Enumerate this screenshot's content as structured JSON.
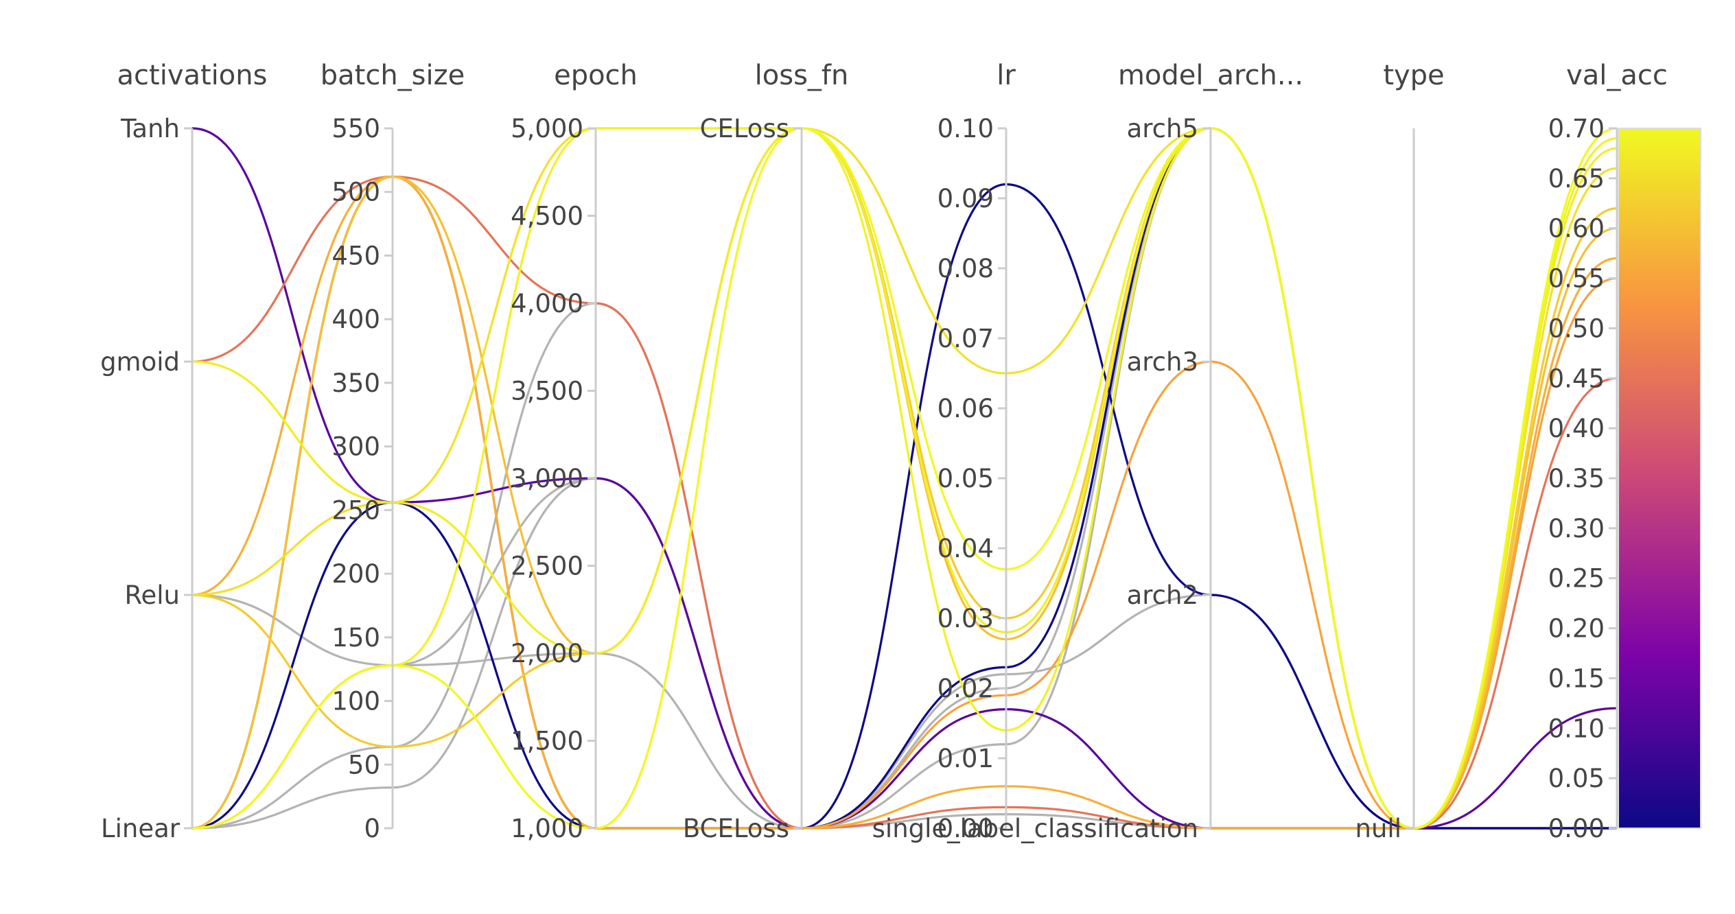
{
  "chart_data": {
    "type": "parallel_coordinates",
    "color_by": "val_acc",
    "dimensions": [
      {
        "key": "activations",
        "label": "activations",
        "kind": "categorical",
        "categories": [
          "Linear",
          "Relu",
          "Sigmoid",
          "Tanh"
        ],
        "tick_labels": [
          "Linear",
          "Relu",
          "gmoid",
          "Tanh"
        ]
      },
      {
        "key": "batch_size",
        "label": "batch_size",
        "kind": "numeric",
        "range": [
          0,
          550
        ],
        "ticks": [
          0,
          50,
          100,
          150,
          200,
          250,
          300,
          350,
          400,
          450,
          500,
          550
        ],
        "tick_labels": [
          "0",
          "50",
          "100",
          "150",
          "200",
          "250",
          "300",
          "350",
          "400",
          "450",
          "500",
          "550"
        ]
      },
      {
        "key": "epoch",
        "label": "epoch",
        "kind": "numeric",
        "range": [
          1000,
          5000
        ],
        "ticks": [
          1000,
          1500,
          2000,
          2500,
          3000,
          3500,
          4000,
          4500,
          5000
        ],
        "tick_labels": [
          "1,000",
          "1,500",
          "2,000",
          "2,500",
          "3,000",
          "3,500",
          "4,000",
          "4,500",
          "5,000"
        ]
      },
      {
        "key": "loss_fn",
        "label": "loss_fn",
        "kind": "categorical",
        "categories": [
          "BCELoss",
          "CELoss"
        ],
        "tick_labels": [
          "BCELoss",
          "CELoss"
        ]
      },
      {
        "key": "lr",
        "label": "lr",
        "kind": "numeric",
        "range": [
          0,
          0.1
        ],
        "ticks": [
          0,
          0.01,
          0.02,
          0.03,
          0.04,
          0.05,
          0.06,
          0.07,
          0.08,
          0.09,
          0.1
        ],
        "tick_labels": [
          "0.00",
          "0.01",
          "0.02",
          "0.03",
          "0.04",
          "0.05",
          "0.06",
          "0.07",
          "0.08",
          "0.09",
          "0.10"
        ]
      },
      {
        "key": "model_arch",
        "label": "model_arch...",
        "kind": "categorical",
        "categories": [
          "single_label_classification",
          "arch2",
          "arch3",
          "arch5"
        ],
        "tick_labels": [
          "single_label_classification",
          "arch2",
          "arch3",
          "arch5"
        ]
      },
      {
        "key": "type",
        "label": "type",
        "kind": "categorical",
        "categories": [
          "null"
        ],
        "tick_labels": [
          "null"
        ]
      },
      {
        "key": "val_acc",
        "label": "val_acc",
        "kind": "numeric",
        "range": [
          0,
          0.7
        ],
        "ticks": [
          0,
          0.05,
          0.1,
          0.15,
          0.2,
          0.25,
          0.3,
          0.35,
          0.4,
          0.45,
          0.5,
          0.55,
          0.6,
          0.65,
          0.7
        ],
        "tick_labels": [
          "0.00",
          "0.05",
          "0.10",
          "0.15",
          "0.20",
          "0.25",
          "0.30",
          "0.35",
          "0.40",
          "0.45",
          "0.50",
          "0.55",
          "0.60",
          "0.65",
          "0.70"
        ]
      }
    ],
    "runs": [
      {
        "activations": "Tanh",
        "batch_size": 256,
        "epoch": 3000,
        "loss_fn": "BCELoss",
        "lr": 0.017,
        "model_arch": "single_label_classification",
        "type": "null",
        "val_acc": 0.12
      },
      {
        "activations": "Sigmoid",
        "batch_size": 512,
        "epoch": 4000,
        "loss_fn": "BCELoss",
        "lr": 0.003,
        "model_arch": "single_label_classification",
        "type": "null",
        "val_acc": 0.45
      },
      {
        "activations": "Sigmoid",
        "batch_size": 256,
        "epoch": 2000,
        "loss_fn": "CELoss",
        "lr": 0.028,
        "model_arch": "arch5",
        "type": "null",
        "val_acc": 0.68
      },
      {
        "activations": "Relu",
        "batch_size": 512,
        "epoch": 1000,
        "loss_fn": "BCELoss",
        "lr": 0.006,
        "model_arch": "single_label_classification",
        "type": "null",
        "val_acc": 0.57
      },
      {
        "activations": "Relu",
        "batch_size": 256,
        "epoch": 5000,
        "loss_fn": "CELoss",
        "lr": 0.065,
        "model_arch": "arch5",
        "type": "null",
        "val_acc": 0.66
      },
      {
        "activations": "Relu",
        "batch_size": 64,
        "epoch": 2000,
        "loss_fn": "CELoss",
        "lr": 0.03,
        "model_arch": "arch5",
        "type": "null",
        "val_acc": 0.62
      },
      {
        "activations": "Linear",
        "batch_size": 512,
        "epoch": 1000,
        "loss_fn": "BCELoss",
        "lr": 0.092,
        "model_arch": "arch2",
        "type": "null",
        "val_acc": 0.0
      },
      {
        "activations": "Linear",
        "batch_size": 256,
        "epoch": 1000,
        "loss_fn": "BCELoss",
        "lr": 0.023,
        "model_arch": "arch5",
        "type": "null",
        "val_acc": 0.0
      },
      {
        "activations": "Linear",
        "batch_size": 128,
        "epoch": 1000,
        "loss_fn": "CELoss",
        "lr": 0.037,
        "model_arch": "arch5",
        "type": "null",
        "val_acc": 0.7
      },
      {
        "activations": "Linear",
        "batch_size": 128,
        "epoch": 5000,
        "loss_fn": "CELoss",
        "lr": 0.014,
        "model_arch": "arch5",
        "type": "null",
        "val_acc": 0.69
      },
      {
        "activations": "Linear",
        "batch_size": 512,
        "epoch": 2000,
        "loss_fn": "CELoss",
        "lr": 0.027,
        "model_arch": "arch5",
        "type": "null",
        "val_acc": 0.6
      },
      {
        "activations": "Linear",
        "batch_size": 512,
        "epoch": 1000,
        "loss_fn": "BCELoss",
        "lr": 0.019,
        "model_arch": "arch3",
        "type": "null",
        "val_acc": 0.55
      },
      {
        "activations": "Relu",
        "batch_size": 128,
        "epoch": 2000,
        "loss_fn": "BCELoss",
        "lr": 0.022,
        "model_arch": "arch2",
        "type": null,
        "val_acc": null
      },
      {
        "activations": "Linear",
        "batch_size": 128,
        "epoch": 3000,
        "loss_fn": "BCELoss",
        "lr": 0.02,
        "model_arch": "arch5",
        "type": null,
        "val_acc": null
      },
      {
        "activations": "Linear",
        "batch_size": 64,
        "epoch": 4000,
        "loss_fn": "BCELoss",
        "lr": 0.012,
        "model_arch": "arch5",
        "type": null,
        "val_acc": null
      },
      {
        "activations": "Linear",
        "batch_size": 32,
        "epoch": 3000,
        "loss_fn": "BCELoss",
        "lr": 0.002,
        "model_arch": "single_label_classification",
        "type": null,
        "val_acc": null
      }
    ]
  }
}
